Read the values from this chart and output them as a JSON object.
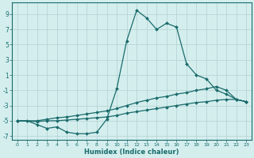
{
  "xlabel": "Humidex (Indice chaleur)",
  "background_color": "#d4eeee",
  "grid_color": "#b8d4d4",
  "line_color": "#1a6b6b",
  "xlim": [
    -0.5,
    23.5
  ],
  "ylim": [
    -7.5,
    10.5
  ],
  "yticks": [
    -7,
    -5,
    -3,
    -1,
    1,
    3,
    5,
    7,
    9
  ],
  "xticks": [
    0,
    1,
    2,
    3,
    4,
    5,
    6,
    7,
    8,
    9,
    10,
    11,
    12,
    13,
    14,
    15,
    16,
    17,
    18,
    19,
    20,
    21,
    22,
    23
  ],
  "series1_x": [
    0,
    1,
    2,
    3,
    4,
    5,
    6,
    7,
    8,
    9,
    10,
    11,
    12,
    13,
    14,
    15,
    16,
    17,
    18,
    19,
    20,
    21,
    22,
    23
  ],
  "series1_y": [
    -5.0,
    -5.0,
    -5.5,
    -6.0,
    -5.8,
    -6.5,
    -6.7,
    -6.7,
    -6.5,
    -4.8,
    -0.8,
    5.5,
    9.5,
    8.5,
    7.0,
    7.8,
    7.3,
    2.5,
    1.0,
    0.5,
    -1.0,
    -1.5,
    -2.2,
    -2.5
  ],
  "series2_x": [
    0,
    2,
    3,
    4,
    5,
    6,
    7,
    8,
    9,
    10,
    11,
    12,
    13,
    14,
    15,
    16,
    17,
    18,
    19,
    20,
    21,
    22,
    23
  ],
  "series2_y": [
    -5.0,
    -5.0,
    -4.8,
    -4.6,
    -4.5,
    -4.3,
    -4.1,
    -3.9,
    -3.7,
    -3.4,
    -3.0,
    -2.6,
    -2.3,
    -2.0,
    -1.8,
    -1.5,
    -1.3,
    -1.0,
    -0.8,
    -0.5,
    -1.0,
    -2.2,
    -2.5
  ],
  "series3_x": [
    0,
    2,
    3,
    4,
    5,
    6,
    7,
    8,
    9,
    10,
    11,
    12,
    13,
    14,
    15,
    16,
    17,
    18,
    19,
    20,
    21,
    22,
    23
  ],
  "series3_y": [
    -5.0,
    -5.1,
    -5.0,
    -5.0,
    -4.9,
    -4.8,
    -4.7,
    -4.6,
    -4.5,
    -4.3,
    -4.0,
    -3.8,
    -3.6,
    -3.4,
    -3.2,
    -3.0,
    -2.8,
    -2.6,
    -2.5,
    -2.3,
    -2.2,
    -2.2,
    -2.5
  ]
}
